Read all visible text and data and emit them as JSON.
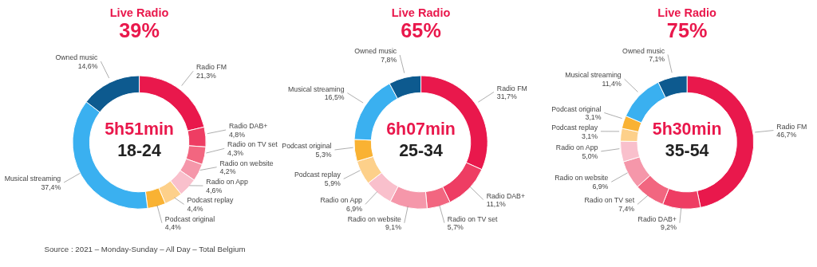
{
  "chart_data": [
    {
      "type": "donut",
      "title": "Live Radio",
      "subtitle": "39%",
      "annotations": [
        "5h51min",
        "18-24",
        "Source : 2021 – Monday-Sunday – All Day – Total Belgium"
      ],
      "categories": [
        "Radio FM",
        "Radio DAB+",
        "Radio on TV set",
        "Radio on website",
        "Radio on App",
        "Podcast replay",
        "Podcast original",
        "Musical streaming",
        "Owned music"
      ],
      "values": [
        21.3,
        4.8,
        4.3,
        4.2,
        4.6,
        4.4,
        4.4,
        37.4,
        14.6
      ],
      "value_labels": [
        "21,3%",
        "4,8%",
        "4,3%",
        "4,2%",
        "4,6%",
        "4,4%",
        "4,4%",
        "37,4%",
        "14,6%"
      ],
      "colors": [
        "#e9184c",
        "#ee3d63",
        "#f26680",
        "#f597aa",
        "#f9c0cc",
        "#fdd08a",
        "#f9b233",
        "#3ab0f0",
        "#0d5a8f"
      ]
    },
    {
      "type": "donut",
      "title": "Live Radio",
      "subtitle": "65%",
      "annotations": [
        "6h07min",
        "25-34"
      ],
      "categories": [
        "Radio FM",
        "Radio DAB+",
        "Radio on TV set",
        "Radio on website",
        "Radio on App",
        "Podcast replay",
        "Podcast original",
        "Musical streaming",
        "Owned music"
      ],
      "values": [
        31.7,
        11.1,
        5.7,
        9.1,
        6.9,
        5.9,
        5.3,
        16.5,
        7.8
      ],
      "value_labels": [
        "31,7%",
        "11,1%",
        "5,7%",
        "9,1%",
        "6,9%",
        "5,9%",
        "5,3%",
        "16,5%",
        "7,8%"
      ],
      "colors": [
        "#e9184c",
        "#ee3d63",
        "#f26680",
        "#f597aa",
        "#f9c0cc",
        "#fdd08a",
        "#f9b233",
        "#3ab0f0",
        "#0d5a8f"
      ]
    },
    {
      "type": "donut",
      "title": "Live Radio",
      "subtitle": "75%",
      "annotations": [
        "5h30min",
        "35-54"
      ],
      "categories": [
        "Radio FM",
        "Radio DAB+",
        "Radio on TV set",
        "Radio on website",
        "Radio on App",
        "Podcast replay",
        "Podcast original",
        "Musical streaming",
        "Owned music"
      ],
      "values": [
        46.7,
        9.2,
        7.4,
        6.9,
        5.0,
        3.1,
        3.1,
        11.4,
        7.1
      ],
      "value_labels": [
        "46,7%",
        "9,2%",
        "7,4%",
        "6,9%",
        "5,0%",
        "3,1%",
        "3,1%",
        "11,4%",
        "7,1%"
      ],
      "colors": [
        "#e9184c",
        "#ee3d63",
        "#f26680",
        "#f597aa",
        "#f9c0cc",
        "#fdd08a",
        "#f9b233",
        "#3ab0f0",
        "#0d5a8f"
      ]
    }
  ]
}
